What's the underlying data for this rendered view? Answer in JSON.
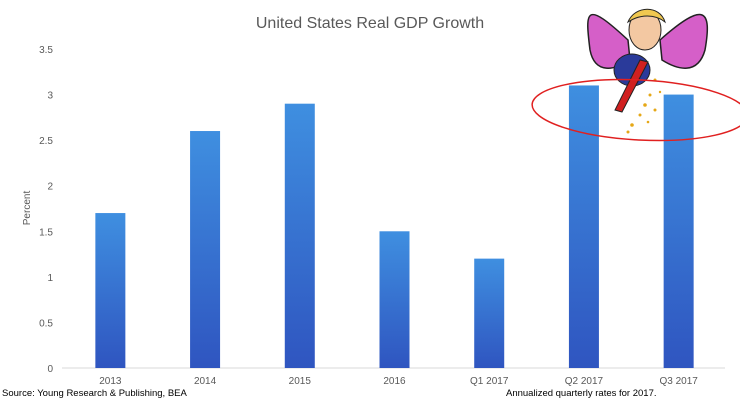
{
  "chart_data": {
    "type": "bar",
    "title": "United States Real GDP Growth",
    "xlabel": "",
    "ylabel": "Percent",
    "categories": [
      "2013",
      "2014",
      "2015",
      "2016",
      "Q1 2017",
      "Q2 2017",
      "Q3 2017"
    ],
    "values": [
      1.7,
      2.6,
      2.9,
      1.5,
      1.2,
      3.1,
      3.0
    ],
    "ylim": [
      0,
      3.5
    ],
    "yticks": [
      0,
      0.5,
      1,
      1.5,
      2,
      2.5,
      3,
      3.5
    ],
    "ytick_labels": [
      "0",
      "0.5",
      "1",
      "1.5",
      "2",
      "2.5",
      "3",
      "3.5"
    ],
    "grid": false,
    "bar_color_top": "#3f8fe0",
    "bar_color_bottom": "#2f55c0",
    "annotation_color": "#e02020"
  },
  "footer": {
    "source": "Source: Young Research & Publishing, BEA",
    "note": "Annualized quarterly rates for 2017."
  }
}
